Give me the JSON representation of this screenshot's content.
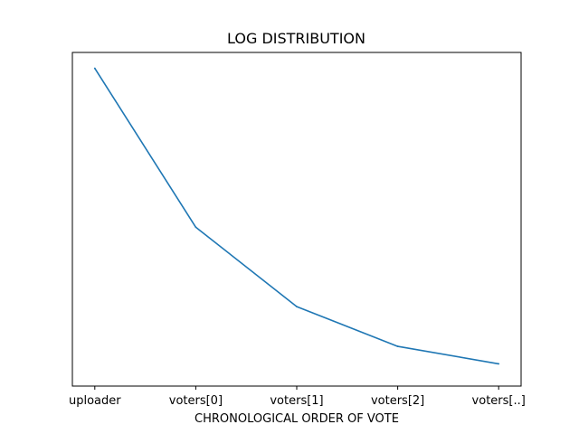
{
  "chart_data": {
    "type": "line",
    "title": "LOG DISTRIBUTION",
    "xlabel": "CHRONOLOGICAL ORDER OF VOTE",
    "ylabel": "",
    "categories": [
      "uploader",
      "voters[0]",
      "voters[1]",
      "voters[2]",
      "voters[..]"
    ],
    "series": [
      {
        "values": [
          1.0,
          0.5,
          0.25,
          0.125,
          0.07
        ],
        "color": "#1f77b4"
      }
    ],
    "ylim": [
      0,
      1.05
    ],
    "y_ticks_shown": false,
    "grid": false,
    "legend": "none"
  }
}
